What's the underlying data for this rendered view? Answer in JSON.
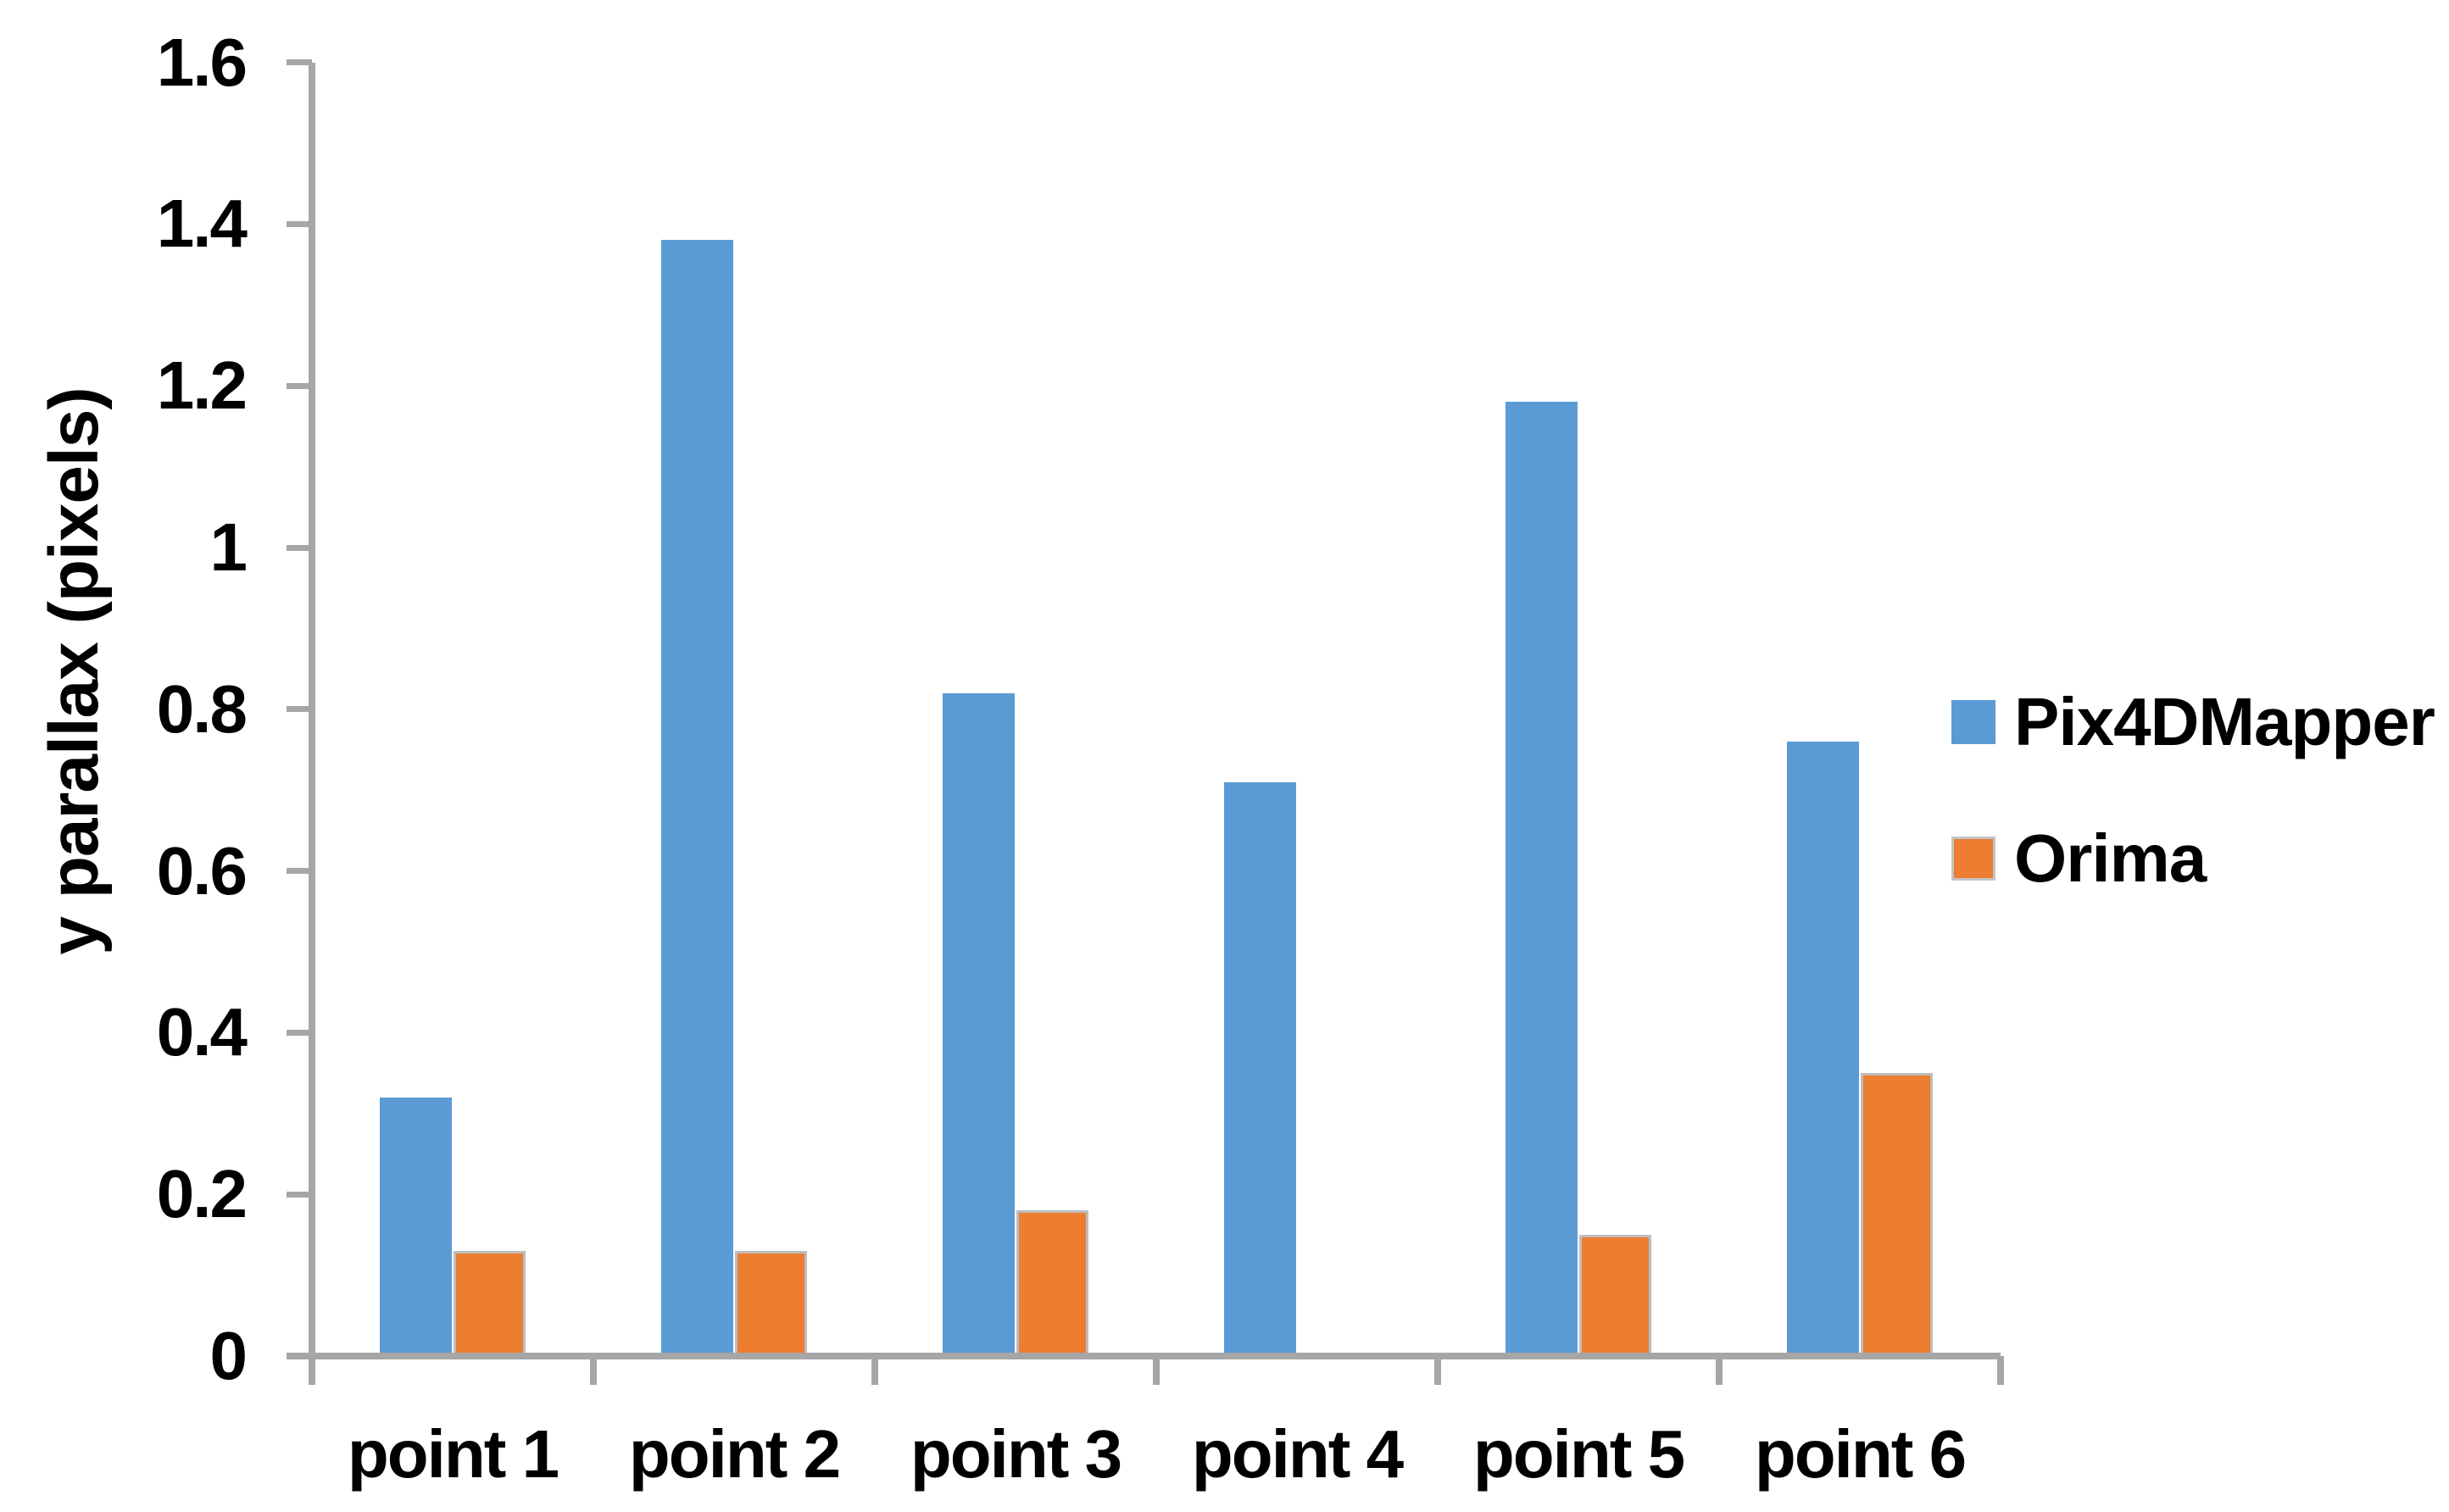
{
  "chart_data": {
    "type": "bar",
    "title": "",
    "xlabel": "",
    "ylabel": "y parallax (pixels)",
    "categories": [
      "point 1",
      "point 2",
      "point 3",
      "point 4",
      "point 5",
      "point 6"
    ],
    "series": [
      {
        "name": "Pix4DMapper",
        "color": "#5b9bd5",
        "values": [
          0.32,
          1.38,
          0.82,
          0.71,
          1.18,
          0.76
        ]
      },
      {
        "name": "Orima",
        "color": "#ed7d31",
        "values": [
          0.13,
          0.13,
          0.18,
          0,
          0.15,
          0.35
        ]
      }
    ],
    "ylim": [
      0,
      1.6
    ],
    "ytick_step": 0.2,
    "ytick_labels": [
      "0",
      "0.2",
      "0.4",
      "0.6",
      "0.8",
      "1",
      "1.2",
      "1.4",
      "1.6"
    ],
    "grid": false,
    "legend_position": "right"
  },
  "colors": {
    "axis": "#a6a6a6",
    "text": "#000000",
    "background": "#ffffff",
    "pix4dmapper": "#5b9bd5",
    "orima": "#ed7d31"
  }
}
